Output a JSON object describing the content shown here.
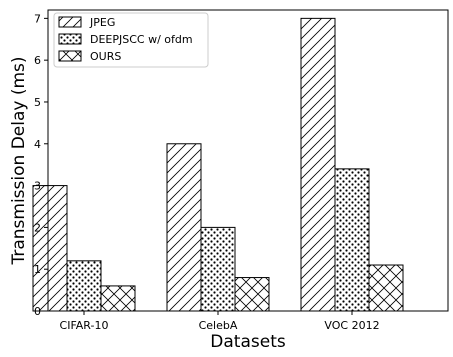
{
  "chart_data": {
    "type": "bar",
    "xlabel": "Datasets",
    "ylabel": "Transmission Delay (ms)",
    "categories": [
      "CIFAR-10",
      "CelebA",
      "VOC 2012"
    ],
    "series": [
      {
        "name": "JPEG",
        "values": [
          3.0,
          4.0,
          7.0
        ],
        "pattern": "diagonal-hatch"
      },
      {
        "name": "DEEPJSCC w/ ofdm",
        "values": [
          1.2,
          2.0,
          3.4
        ],
        "pattern": "dots"
      },
      {
        "name": "OURS",
        "values": [
          0.6,
          0.8,
          1.1
        ],
        "pattern": "cross-hatch"
      }
    ],
    "ylim": [
      0,
      7.2
    ],
    "yticks": [
      0,
      1,
      2,
      3,
      4,
      5,
      6,
      7
    ],
    "grid": false,
    "legend_position": "top-left",
    "colors": {
      "fill": "#ffffff",
      "edge": "#000000"
    }
  }
}
